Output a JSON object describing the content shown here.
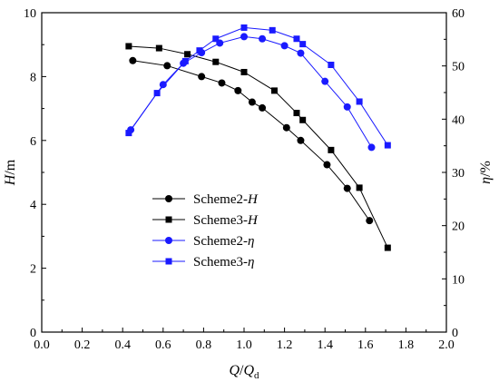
{
  "chart_data": {
    "type": "line",
    "xlabel": "Q/Qd",
    "ylabel_left": "H/m",
    "ylabel_right": "η/%",
    "xlim": [
      0.0,
      2.0
    ],
    "ylim_left": [
      0,
      10
    ],
    "ylim_right": [
      0,
      60
    ],
    "x_ticks": [
      "0.0",
      "0.2",
      "0.4",
      "0.6",
      "0.8",
      "1.0",
      "1.2",
      "1.4",
      "1.6",
      "1.8",
      "2.0"
    ],
    "y_left_ticks": [
      "0",
      "2",
      "4",
      "6",
      "8",
      "10"
    ],
    "y_right_ticks": [
      "0",
      "10",
      "20",
      "30",
      "40",
      "50",
      "60"
    ],
    "grid": false,
    "legend_position": "center-left",
    "series": [
      {
        "name": "Scheme2-H",
        "axis": "left",
        "marker": "circle",
        "color": "#000000",
        "x": [
          0.45,
          0.62,
          0.79,
          0.89,
          0.97,
          1.04,
          1.09,
          1.21,
          1.28,
          1.41,
          1.51,
          1.62
        ],
        "y": [
          8.5,
          8.34,
          8.0,
          7.8,
          7.56,
          7.2,
          7.02,
          6.4,
          6.0,
          5.24,
          4.5,
          3.49
        ]
      },
      {
        "name": "Scheme3-H",
        "axis": "left",
        "marker": "square",
        "color": "#000000",
        "x": [
          0.43,
          0.58,
          0.72,
          0.86,
          1.0,
          1.15,
          1.26,
          1.29,
          1.43,
          1.57,
          1.71
        ],
        "y": [
          8.95,
          8.89,
          8.7,
          8.46,
          8.14,
          7.56,
          6.86,
          6.64,
          5.7,
          4.52,
          2.64
        ]
      },
      {
        "name": "Scheme2-η",
        "axis": "right",
        "marker": "circle",
        "color": "#1a1aff",
        "x": [
          0.44,
          0.6,
          0.7,
          0.79,
          0.88,
          1.0,
          1.09,
          1.2,
          1.28,
          1.4,
          1.51,
          1.63
        ],
        "y": [
          38.0,
          46.5,
          50.5,
          52.5,
          54.3,
          55.5,
          55.1,
          53.8,
          52.4,
          47.1,
          42.3,
          34.7
        ]
      },
      {
        "name": "Scheme3-η",
        "axis": "right",
        "marker": "square",
        "color": "#1a1aff",
        "x": [
          0.43,
          0.57,
          0.71,
          0.78,
          0.86,
          1.0,
          1.14,
          1.26,
          1.29,
          1.43,
          1.57,
          1.71
        ],
        "y": [
          37.4,
          44.9,
          50.9,
          52.9,
          55.1,
          57.2,
          56.7,
          55.1,
          54.1,
          50.2,
          43.3,
          35.1
        ]
      }
    ]
  }
}
